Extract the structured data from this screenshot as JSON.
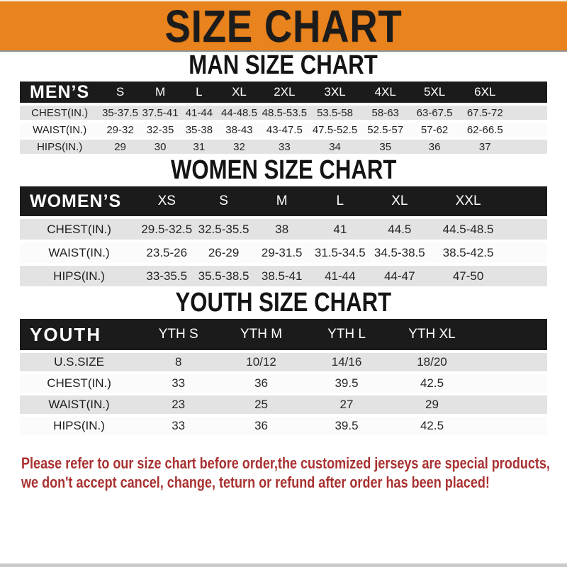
{
  "banner": {
    "title": "SIZE CHART"
  },
  "colors": {
    "banner_bg": "#E9831E",
    "header_bar": "#1B1B1B",
    "row_stripe": "#E3E3E3",
    "note_red": "#A93131"
  },
  "sections": [
    {
      "id": "men",
      "heading": "MAN SIZE CHART",
      "table": {
        "label": "MEN’S",
        "columns": [
          "S",
          "M",
          "L",
          "XL",
          "2XL",
          "3XL",
          "4XL",
          "5XL",
          "6XL"
        ],
        "rows": [
          {
            "label": "CHEST(IN.)",
            "values": [
              "35-37.5",
              "37.5-41",
              "41-44",
              "44-48.5",
              "48.5-53.5",
              "53.5-58",
              "58-63",
              "63-67.5",
              "67.5-72"
            ]
          },
          {
            "label": "WAIST(IN.)",
            "values": [
              "29-32",
              "32-35",
              "35-38",
              "38-43",
              "43-47.5",
              "47.5-52.5",
              "52.5-57",
              "57-62",
              "62-66.5"
            ]
          },
          {
            "label": "HIPS(IN.)",
            "values": [
              "29",
              "30",
              "31",
              "32",
              "33",
              "34",
              "35",
              "36",
              "37"
            ]
          }
        ]
      }
    },
    {
      "id": "women",
      "heading": "WOMEN SIZE CHART",
      "table": {
        "label": "WOMEN’S",
        "columns": [
          "XS",
          "S",
          "M",
          "L",
          "XL",
          "XXL"
        ],
        "rows": [
          {
            "label": "CHEST(IN.)",
            "values": [
              "29.5-32.5",
              "32.5-35.5",
              "38",
              "41",
              "44.5",
              "44.5-48.5"
            ]
          },
          {
            "label": "WAIST(IN.)",
            "values": [
              "23.5-26",
              "26-29",
              "29-31.5",
              "31.5-34.5",
              "34.5-38.5",
              "38.5-42.5"
            ]
          },
          {
            "label": "HIPS(IN.)",
            "values": [
              "33-35.5",
              "35.5-38.5",
              "38.5-41",
              "41-44",
              "44-47",
              "47-50"
            ]
          }
        ]
      }
    },
    {
      "id": "youth",
      "heading": "YOUTH SIZE CHART",
      "table": {
        "label": "YOUTH",
        "columns": [
          "YTH S",
          "YTH M",
          "YTH L",
          "YTH XL"
        ],
        "rows": [
          {
            "label": "U.S.SIZE",
            "values": [
              "8",
              "10/12",
              "14/16",
              "18/20"
            ]
          },
          {
            "label": "CHEST(IN.)",
            "values": [
              "33",
              "36",
              "39.5",
              "42.5"
            ]
          },
          {
            "label": "WAIST(IN.)",
            "values": [
              "23",
              "25",
              "27",
              "29"
            ]
          },
          {
            "label": "HIPS(IN.)",
            "values": [
              "33",
              "36",
              "39.5",
              "42.5"
            ]
          }
        ]
      }
    }
  ],
  "note": {
    "line1": "Please refer to our size chart before order,the customized jerseys are special products,",
    "line2": "we don't accept cancel, change, teturn or refund after order has been placed!"
  }
}
